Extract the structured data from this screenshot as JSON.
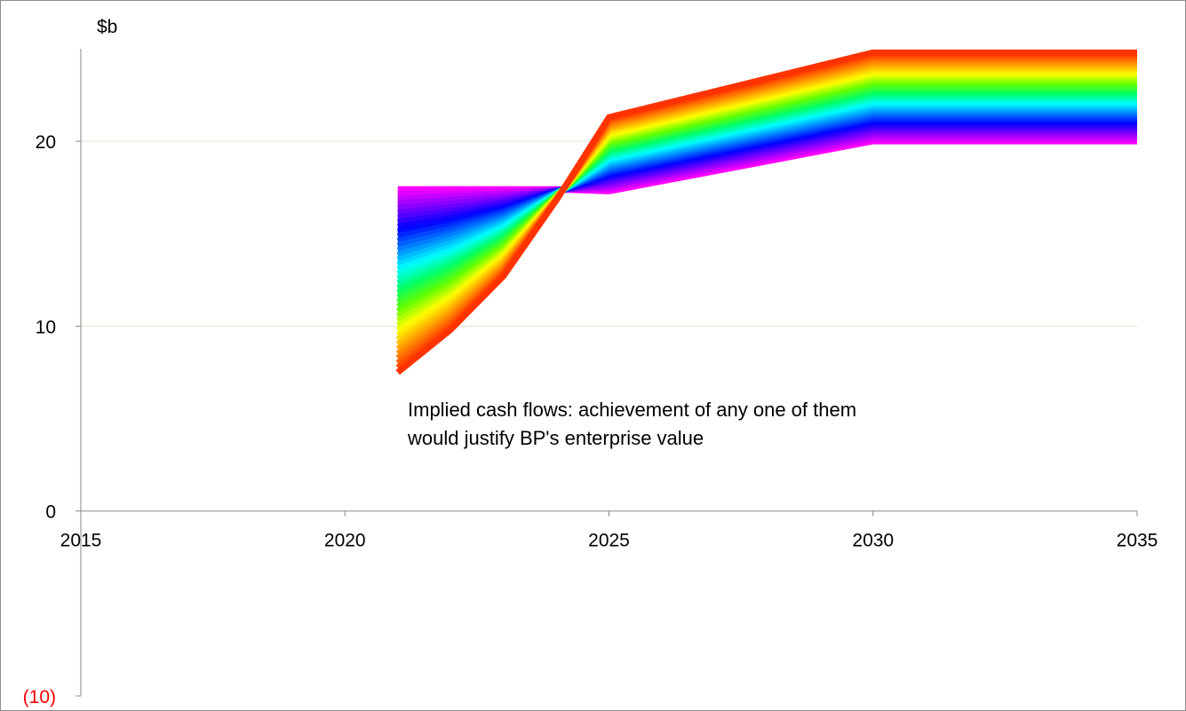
{
  "chart_data": {
    "type": "line",
    "title": "",
    "xlabel": "",
    "ylabel": "$b",
    "xlim": [
      2015,
      2035
    ],
    "ylim": [
      -10,
      25
    ],
    "x_ticks": [
      "2015",
      "2020",
      "2025",
      "2030",
      "2035"
    ],
    "y_ticks": [
      {
        "value": 20,
        "label": "20"
      },
      {
        "value": 10,
        "label": "10"
      },
      {
        "value": 0,
        "label": "0"
      },
      {
        "value": -10,
        "label": "(10)"
      }
    ],
    "grid": true,
    "annotation": [
      "Implied cash flows: achievement of any one of them",
      "would justify BP's enterprise value"
    ],
    "band": {
      "x": [
        2021,
        2022,
        2023,
        2024,
        2025,
        2030,
        2035
      ],
      "lower_envelope": [
        7.5,
        9.8,
        12.7,
        16.8,
        21.3,
        24.8,
        24.8
      ],
      "upper_envelope": [
        17.4,
        17.4,
        17.4,
        17.4,
        17.3,
        20.0,
        20.0
      ],
      "series_count": 40,
      "palette": [
        "#ff3300",
        "#ff9900",
        "#ffff00",
        "#66ff00",
        "#00ff66",
        "#00ffff",
        "#0080ff",
        "#0000ff",
        "#8000ff",
        "#ff00ff"
      ]
    },
    "colors": {
      "negative_tick": "#ff0000",
      "tick_text": "#000000",
      "gridline": "#e0e0d0",
      "axis": "#888888"
    }
  }
}
